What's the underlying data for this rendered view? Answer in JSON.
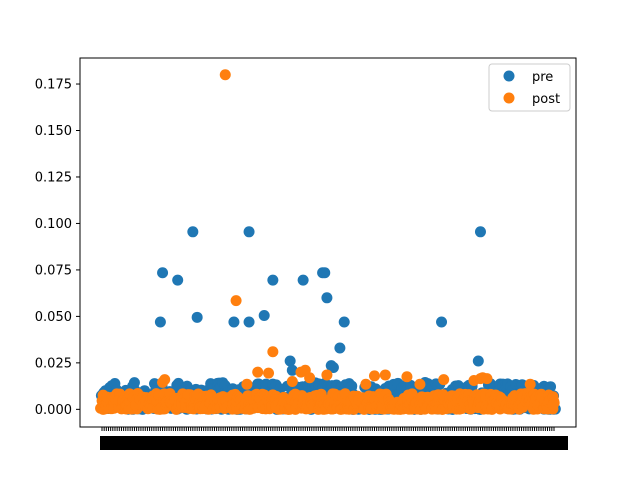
{
  "chart_data": {
    "type": "scatter",
    "title": "",
    "xlabel": "",
    "ylabel": "",
    "ylim": [
      -0.0095,
      0.189
    ],
    "y_ticks": [
      "0.000",
      "0.025",
      "0.050",
      "0.075",
      "0.100",
      "0.125",
      "0.150",
      "0.175"
    ],
    "y_tick_values": [
      0,
      0.025,
      0.05,
      0.075,
      0.1,
      0.125,
      0.15,
      0.175
    ],
    "x_count": 210,
    "x_note": "x-axis has ~210 dense, overlapping categorical tick labels (unreadable)",
    "grid": false,
    "legend": {
      "placement": "top-right",
      "entries": [
        "pre",
        "post"
      ]
    },
    "series": [
      {
        "name": "pre",
        "color": "#1f77b4",
        "notable_points": [
          [
            27,
            0.047
          ],
          [
            28,
            0.0735
          ],
          [
            35,
            0.0695
          ],
          [
            42,
            0.0955
          ],
          [
            44,
            0.0495
          ],
          [
            61,
            0.047
          ],
          [
            68,
            0.0955
          ],
          [
            68,
            0.047
          ],
          [
            75,
            0.0505
          ],
          [
            79,
            0.0695
          ],
          [
            87,
            0.026
          ],
          [
            88,
            0.021
          ],
          [
            93,
            0.0695
          ],
          [
            102,
            0.0735
          ],
          [
            103,
            0.0735
          ],
          [
            104,
            0.06
          ],
          [
            106,
            0.0235
          ],
          [
            107,
            0.0225
          ],
          [
            110,
            0.033
          ],
          [
            112,
            0.047
          ],
          [
            157,
            0.047
          ],
          [
            174,
            0.026
          ],
          [
            175,
            0.0955
          ]
        ],
        "baseline_min": 0.0,
        "baseline_max": 0.0145
      },
      {
        "name": "post",
        "color": "#ff7f0e",
        "notable_points": [
          [
            57,
            0.18
          ],
          [
            62,
            0.0585
          ],
          [
            28,
            0.0145
          ],
          [
            29,
            0.016
          ],
          [
            67,
            0.0135
          ],
          [
            72,
            0.02
          ],
          [
            77,
            0.0195
          ],
          [
            79,
            0.031
          ],
          [
            88,
            0.015
          ],
          [
            92,
            0.02
          ],
          [
            94,
            0.021
          ],
          [
            96,
            0.017
          ],
          [
            104,
            0.0185
          ],
          [
            122,
            0.0135
          ],
          [
            126,
            0.018
          ],
          [
            131,
            0.0185
          ],
          [
            141,
            0.0175
          ],
          [
            147,
            0.0135
          ],
          [
            158,
            0.016
          ],
          [
            172,
            0.0155
          ],
          [
            175,
            0.0165
          ],
          [
            176,
            0.017
          ],
          [
            178,
            0.0165
          ],
          [
            198,
            0.0135
          ]
        ],
        "baseline_min": 0.0,
        "baseline_max": 0.0085
      }
    ]
  }
}
